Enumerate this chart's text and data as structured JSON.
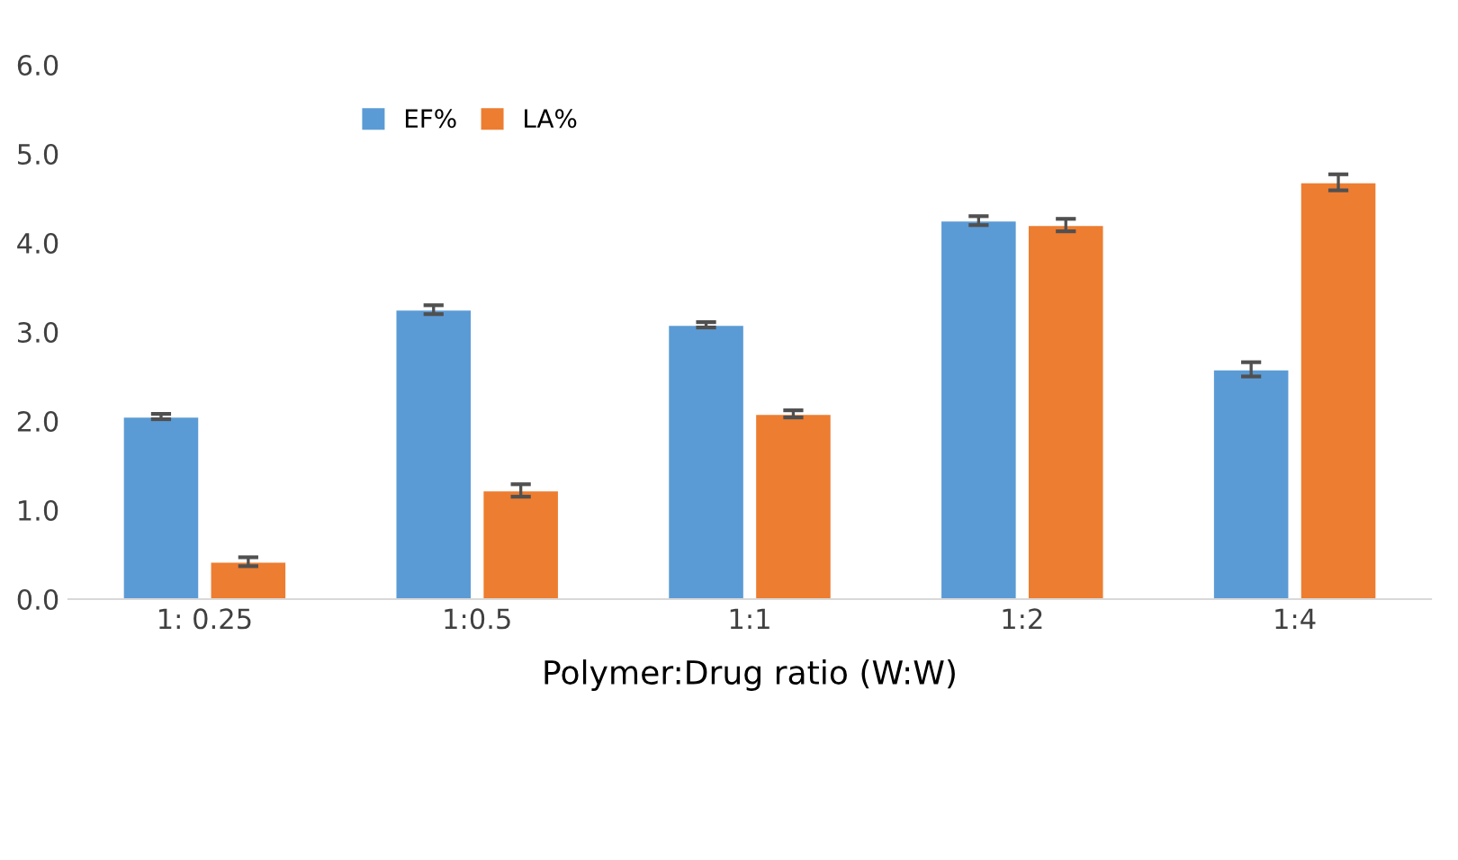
{
  "chart_data": {
    "type": "bar",
    "xlabel": "Polymer:Drug ratio (W:W)",
    "categories": [
      "1: 0.25",
      "1:0.5",
      "1:1",
      "1:2",
      "1:4"
    ],
    "series": [
      {
        "name": "EF%",
        "color": "#5b9bd5",
        "values": [
          2.05,
          3.25,
          3.08,
          4.25,
          2.58
        ],
        "errors": [
          0.03,
          0.05,
          0.03,
          0.05,
          0.08
        ]
      },
      {
        "name": "LA%",
        "color": "#ed7d31",
        "values": [
          0.42,
          1.22,
          2.08,
          4.2,
          4.68
        ],
        "errors": [
          0.05,
          0.07,
          0.04,
          0.07,
          0.09
        ]
      }
    ],
    "ylim": [
      0,
      6
    ],
    "yticks": [
      {
        "value": 0,
        "label": "0.0"
      },
      {
        "value": 1,
        "label": "1.0"
      },
      {
        "value": 2,
        "label": "2.0"
      },
      {
        "value": 3,
        "label": "3.0"
      },
      {
        "value": 4,
        "label": "4.0"
      },
      {
        "value": 5,
        "label": "5.0"
      },
      {
        "value": 6,
        "label": "6.0"
      }
    ],
    "grid": false,
    "legend": "top left"
  }
}
